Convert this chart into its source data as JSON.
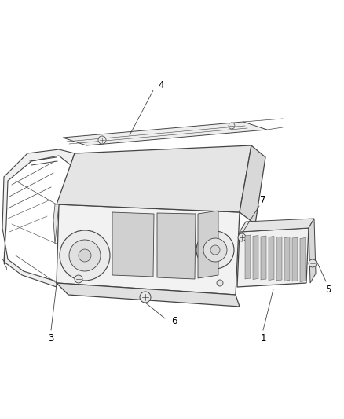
{
  "background_color": "#ffffff",
  "line_color": "#444444",
  "fill_color": "#f5f5f5",
  "fill_dark": "#e8e8e8",
  "fill_darker": "#d8d8d8",
  "label_color": "#000000",
  "label_fontsize": 8.5,
  "fig_width": 4.38,
  "fig_height": 5.33,
  "dpi": 100
}
